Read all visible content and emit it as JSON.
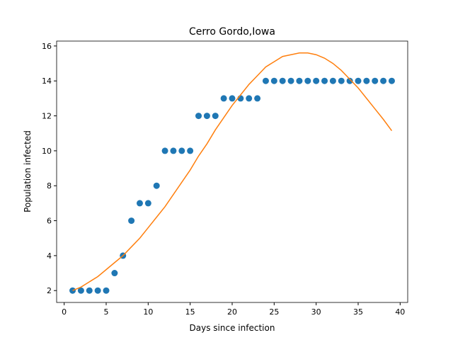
{
  "chart_data": {
    "type": "scatter",
    "title": "Cerro Gordo,Iowa",
    "x_label": "Days since infection",
    "y_label": "Population infected",
    "x": [
      1,
      2,
      3,
      4,
      5,
      6,
      7,
      8,
      9,
      10,
      11,
      12,
      13,
      14,
      15,
      16,
      17,
      18,
      19,
      20,
      21,
      22,
      23,
      24,
      25,
      26,
      27,
      28,
      29,
      30,
      31,
      32,
      33,
      34,
      35,
      36,
      37,
      38,
      39
    ],
    "series": [
      {
        "type": "scatter",
        "color": "#1f77b4",
        "values": [
          2,
          2,
          2,
          2,
          2,
          3,
          4,
          6,
          7,
          7,
          8,
          10,
          10,
          10,
          10,
          12,
          12,
          12,
          13,
          13,
          13,
          13,
          13,
          14,
          14,
          14,
          14,
          14,
          14,
          14,
          14,
          14,
          14,
          14,
          14,
          14,
          14,
          14,
          14
        ]
      },
      {
        "type": "line",
        "color": "#ff7f0e",
        "values": [
          2.0,
          2.2,
          2.5,
          2.8,
          3.2,
          3.6,
          4.0,
          4.5,
          5.0,
          5.6,
          6.2,
          6.8,
          7.5,
          8.2,
          8.9,
          9.7,
          10.4,
          11.2,
          11.9,
          12.6,
          13.2,
          13.8,
          14.3,
          14.8,
          15.1,
          15.4,
          15.5,
          15.6,
          15.6,
          15.5,
          15.3,
          15.0,
          14.6,
          14.1,
          13.6,
          13.0,
          12.4,
          11.8,
          11.15
        ]
      }
    ],
    "xlim": [
      -0.9,
      40.9
    ],
    "ylim": [
      1.32,
      16.28
    ],
    "xticks": [
      0,
      5,
      10,
      15,
      20,
      25,
      30,
      35,
      40
    ],
    "yticks": [
      2,
      4,
      6,
      8,
      10,
      12,
      14,
      16
    ]
  }
}
